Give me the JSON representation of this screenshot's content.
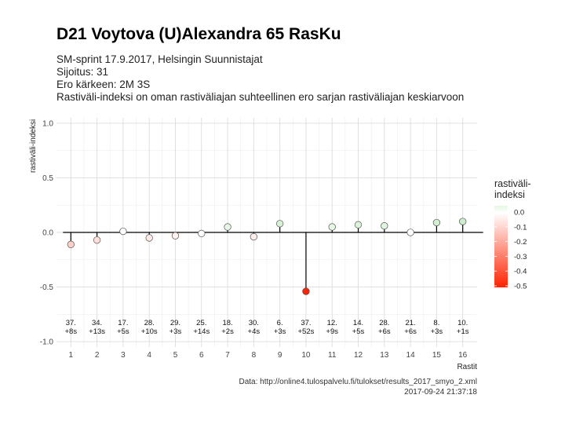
{
  "header": {
    "title": "D21 Voytova (U)Alexandra 65 RasKu",
    "subtitle_lines": [
      "SM-sprint 17.9.2017, Helsingin Suunnistajat",
      "Sijoitus: 31",
      "Ero kärkeen: 2M 3S",
      "Rastiväli-indeksi on oman rastiväliajan suhteellinen ero sarjan rastiväliajan keskiarvoon"
    ]
  },
  "footer": {
    "source": "Data: http://online4.tulospalvelu.fi/tulokset/results_2017_smyo_2.xml",
    "timestamp": "2017-09-24 21:37:18"
  },
  "chart_data": {
    "type": "scatter",
    "style": "lollipop",
    "xlabel": "Rastit",
    "ylabel": "rastiväli-indeksi",
    "x": [
      1,
      2,
      3,
      4,
      5,
      6,
      7,
      8,
      9,
      10,
      11,
      12,
      13,
      14,
      15,
      16
    ],
    "y": [
      -0.11,
      -0.07,
      0.01,
      -0.05,
      -0.03,
      -0.01,
      0.05,
      -0.04,
      0.08,
      -0.54,
      0.05,
      0.07,
      0.06,
      0.0,
      0.09,
      0.1
    ],
    "labels": [
      {
        "rank": "37.",
        "diff": "+8s"
      },
      {
        "rank": "34.",
        "diff": "+13s"
      },
      {
        "rank": "17.",
        "diff": "+5s"
      },
      {
        "rank": "28.",
        "diff": "+10s"
      },
      {
        "rank": "29.",
        "diff": "+3s"
      },
      {
        "rank": "25.",
        "diff": "+14s"
      },
      {
        "rank": "18.",
        "diff": "+2s"
      },
      {
        "rank": "30.",
        "diff": "+4s"
      },
      {
        "rank": "6.",
        "diff": "+3s"
      },
      {
        "rank": "37.",
        "diff": "+52s"
      },
      {
        "rank": "12.",
        "diff": "+9s"
      },
      {
        "rank": "14.",
        "diff": "+5s"
      },
      {
        "rank": "28.",
        "diff": "+6s"
      },
      {
        "rank": "21.",
        "diff": "+6s"
      },
      {
        "rank": "8.",
        "diff": "+3s"
      },
      {
        "rank": "10.",
        "diff": "+1s"
      }
    ],
    "x_ticks": [
      "1",
      "2",
      "3",
      "4",
      "5",
      "6",
      "7",
      "8",
      "9",
      "10",
      "11",
      "12",
      "13",
      "14",
      "15",
      "16"
    ],
    "y_ticks": [
      "1.0",
      "0.5",
      "0.0",
      "-0.5",
      "-1.0"
    ],
    "y_tick_values": [
      1.0,
      0.5,
      0.0,
      -0.5,
      -1.0
    ],
    "ylim": [
      -1.05,
      1.05
    ],
    "xlim": [
      0.45,
      16.55
    ],
    "grid": true,
    "legend": {
      "title_lines": [
        "rastiväli-",
        "indeksi"
      ],
      "tick_labels": [
        "0.0",
        "-0.1",
        "-0.2",
        "-0.3",
        "-0.4",
        "-0.5"
      ],
      "tick_values": [
        0.0,
        -0.1,
        -0.2,
        -0.3,
        -0.4,
        -0.5
      ],
      "placement": "right",
      "colors": {
        "zero": "#ffffff",
        "negative": "#ff2200",
        "positive": "#00aa00"
      }
    }
  }
}
